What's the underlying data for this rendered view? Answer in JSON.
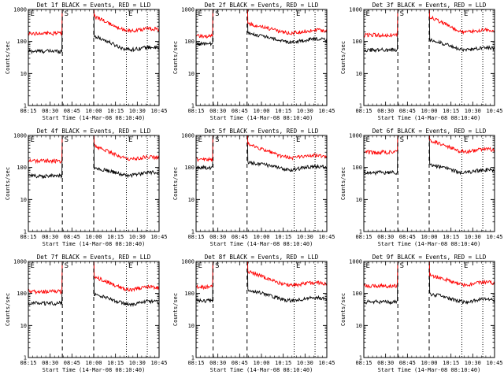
{
  "colors": {
    "events": "#000000",
    "lld": "#ff0000",
    "background": "#ffffff"
  },
  "shared": {
    "ylabel": "Counts/sec",
    "xlabel": "Start Time (14-Mar-08 08:10:40)",
    "x_ticks": [
      "08:15",
      "08:30",
      "08:45",
      "10:00",
      "10:15",
      "10:30",
      "10:45"
    ],
    "y_ticks": [
      "1",
      "10",
      "100",
      "1000"
    ],
    "ylim": [
      1,
      1000
    ],
    "xlim_minutes": [
      0,
      100
    ],
    "yscale": "log",
    "markers": [
      "E",
      "S",
      "E"
    ]
  },
  "chart_data": [
    {
      "type": "line",
      "title": "Det 1f BLACK = Events, RED = LLD",
      "series": [
        {
          "name": "Events",
          "color": "#000000",
          "pre": 50,
          "post": 58,
          "decay": 2.6
        },
        {
          "name": "LLD",
          "color": "#ff0000",
          "pre": 180,
          "post": 220,
          "decay": 2.8
        }
      ],
      "vlines_dashed": [
        26,
        50
      ],
      "vlines_dotted": [
        75,
        91
      ]
    },
    {
      "type": "line",
      "title": "Det 2f BLACK = Events, RED = LLD",
      "series": [
        {
          "name": "Events",
          "color": "#000000",
          "pre": 85,
          "post": 105,
          "decay": 1.7
        },
        {
          "name": "LLD",
          "color": "#ff0000",
          "pre": 150,
          "post": 200,
          "decay": 1.8
        }
      ],
      "vlines_dashed": [
        13,
        39
      ],
      "vlines_dotted": [
        75,
        91
      ]
    },
    {
      "type": "line",
      "title": "Det 3f BLACK = Events, RED = LLD",
      "series": [
        {
          "name": "Events",
          "color": "#000000",
          "pre": 55,
          "post": 58,
          "decay": 2.0
        },
        {
          "name": "LLD",
          "color": "#ff0000",
          "pre": 160,
          "post": 200,
          "decay": 3.0
        }
      ],
      "vlines_dashed": [
        26,
        50
      ],
      "vlines_dotted": [
        75,
        91
      ]
    },
    {
      "type": "line",
      "title": "Det 4f BLACK = Events, RED = LLD",
      "series": [
        {
          "name": "Events",
          "color": "#000000",
          "pre": 55,
          "post": 62,
          "decay": 1.5
        },
        {
          "name": "LLD",
          "color": "#ff0000",
          "pre": 160,
          "post": 190,
          "decay": 2.6
        }
      ],
      "vlines_dashed": [
        26,
        50
      ],
      "vlines_dotted": [
        75,
        91
      ]
    },
    {
      "type": "line",
      "title": "Det 5f BLACK = Events, RED = LLD",
      "series": [
        {
          "name": "Events",
          "color": "#000000",
          "pre": 100,
          "post": 95,
          "decay": 1.5
        },
        {
          "name": "LLD",
          "color": "#ff0000",
          "pre": 180,
          "post": 210,
          "decay": 2.6
        }
      ],
      "vlines_dashed": [
        13,
        39
      ],
      "vlines_dotted": [
        75,
        91
      ]
    },
    {
      "type": "line",
      "title": "Det 6f BLACK = Events, RED = LLD",
      "series": [
        {
          "name": "Events",
          "color": "#000000",
          "pre": 70,
          "post": 75,
          "decay": 1.6
        },
        {
          "name": "LLD",
          "color": "#ff0000",
          "pre": 300,
          "post": 330,
          "decay": 2.2
        }
      ],
      "vlines_dashed": [
        26,
        50
      ],
      "vlines_dotted": [
        75,
        91
      ]
    },
    {
      "type": "line",
      "title": "Det 7f BLACK = Events, RED = LLD",
      "series": [
        {
          "name": "Events",
          "color": "#000000",
          "pre": 50,
          "post": 50,
          "decay": 1.9
        },
        {
          "name": "LLD",
          "color": "#ff0000",
          "pre": 115,
          "post": 140,
          "decay": 2.4
        }
      ],
      "vlines_dashed": [
        26,
        50
      ],
      "vlines_dotted": [
        75,
        91
      ]
    },
    {
      "type": "line",
      "title": "Det 8f BLACK = Events, RED = LLD",
      "series": [
        {
          "name": "Events",
          "color": "#000000",
          "pre": 60,
          "post": 65,
          "decay": 2.0
        },
        {
          "name": "LLD",
          "color": "#ff0000",
          "pre": 160,
          "post": 190,
          "decay": 2.6
        }
      ],
      "vlines_dashed": [
        13,
        39
      ],
      "vlines_dotted": [
        75,
        91
      ]
    },
    {
      "type": "line",
      "title": "Det 9f BLACK = Events, RED = LLD",
      "series": [
        {
          "name": "Events",
          "color": "#000000",
          "pre": 55,
          "post": 60,
          "decay": 1.6
        },
        {
          "name": "LLD",
          "color": "#ff0000",
          "pre": 175,
          "post": 200,
          "decay": 1.9
        }
      ],
      "vlines_dashed": [
        26,
        50
      ],
      "vlines_dotted": [
        75,
        91
      ]
    }
  ]
}
